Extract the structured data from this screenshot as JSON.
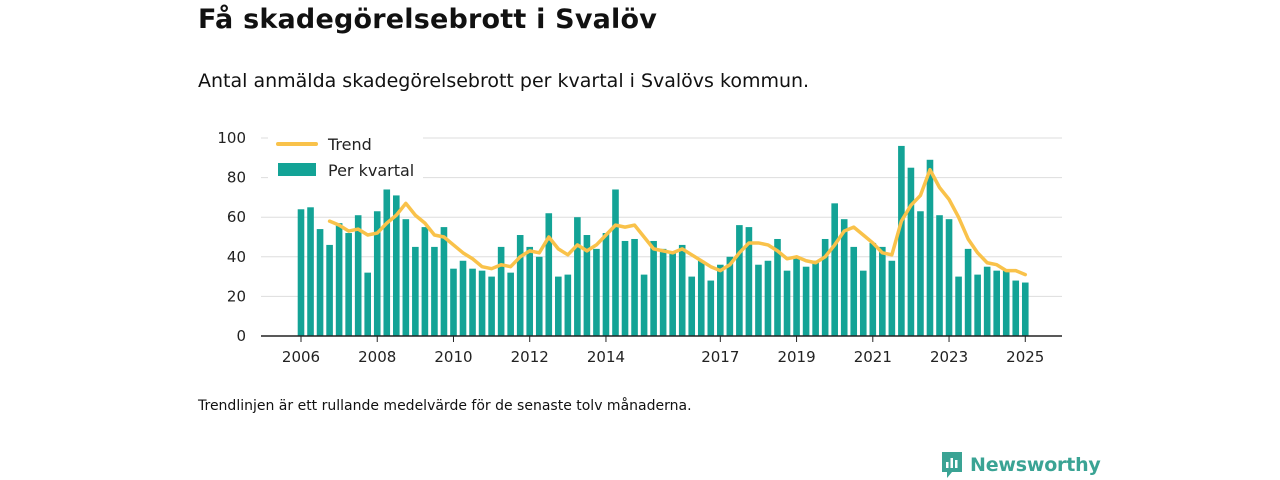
{
  "title": "Få skadegörelsebrott i Svalöv",
  "subtitle": "Antal anmälda skadegörelsebrott per kvartal i Svalövs kommun.",
  "footnote": "Trendlinjen är ett rullande medelvärde för de senaste tolv månaderna.",
  "brand": {
    "name": "Newsworthy",
    "icon": "newsworthy-chart-icon"
  },
  "colors": {
    "bar": "#13a396",
    "trend": "#f9c24a",
    "grid": "#dddddd",
    "axis": "#222222"
  },
  "chart_data": {
    "type": "bar",
    "x_unit": "quarter",
    "start": "2006 Q1",
    "ylim": [
      0,
      100
    ],
    "yticks": [
      0,
      20,
      40,
      60,
      80,
      100
    ],
    "xticks": [
      "2006",
      "2008",
      "2010",
      "2012",
      "2014",
      "2017",
      "2019",
      "2021",
      "2023",
      "2025"
    ],
    "xtick_years": [
      2006,
      2008,
      2010,
      2012,
      2014,
      2017,
      2019,
      2021,
      2023,
      2025
    ],
    "grid": true,
    "legend_position": "top-left",
    "series": [
      {
        "name": "Per kvartal",
        "type": "bar",
        "values": [
          64,
          65,
          54,
          46,
          57,
          52,
          61,
          32,
          63,
          74,
          71,
          59,
          45,
          55,
          45,
          55,
          34,
          38,
          34,
          33,
          30,
          45,
          32,
          51,
          45,
          40,
          62,
          30,
          31,
          60,
          51,
          44,
          52,
          74,
          48,
          49,
          31,
          48,
          44,
          42,
          46,
          30,
          38,
          28,
          36,
          40,
          56,
          55,
          36,
          38,
          49,
          33,
          40,
          35,
          38,
          49,
          67,
          59,
          45,
          33,
          47,
          45,
          38,
          96,
          85,
          63,
          89,
          61,
          59,
          30,
          44,
          31,
          35,
          33,
          33,
          28,
          27
        ]
      },
      {
        "name": "Trend",
        "type": "line",
        "values": [
          null,
          null,
          null,
          58,
          56,
          53,
          54,
          51,
          52,
          57,
          61,
          67,
          61,
          57,
          51,
          50,
          46,
          42,
          39,
          35,
          34,
          36,
          35,
          40,
          43,
          42,
          50,
          44,
          41,
          46,
          43,
          46,
          51,
          56,
          55,
          56,
          50,
          44,
          43,
          42,
          44,
          41,
          38,
          35,
          33,
          36,
          42,
          47,
          47,
          46,
          43,
          39,
          40,
          38,
          37,
          40,
          46,
          53,
          55,
          51,
          47,
          42,
          41,
          58,
          66,
          71,
          84,
          75,
          69,
          60,
          49,
          42,
          37,
          36,
          33,
          33,
          31
        ]
      }
    ]
  }
}
